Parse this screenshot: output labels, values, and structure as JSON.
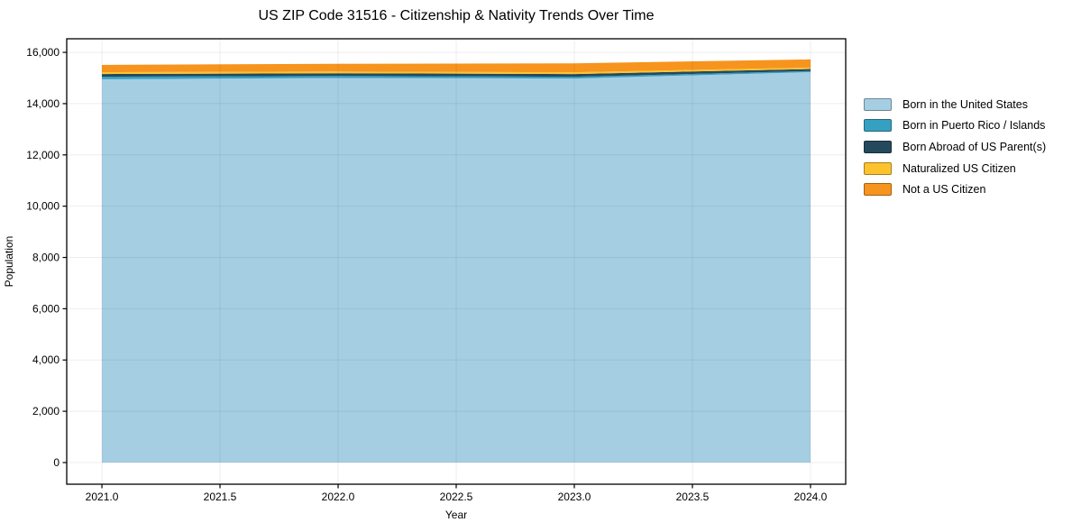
{
  "title": "US ZIP Code 31516 - Citizenship & Nativity Trends Over Time",
  "chart_data": {
    "type": "area",
    "stacked": true,
    "title": "US ZIP Code 31516 - Citizenship & Nativity Trends Over Time",
    "xlabel": "Year",
    "ylabel": "Population",
    "x": [
      2021,
      2022,
      2023,
      2024
    ],
    "series": [
      {
        "name": "Born in the United States",
        "color": "#a6cee3",
        "values": [
          14950,
          15000,
          14980,
          15230
        ]
      },
      {
        "name": "Born in Puerto Rico / Islands",
        "color": "#36a0c2",
        "values": [
          100,
          80,
          70,
          40
        ]
      },
      {
        "name": "Born Abroad of US Parent(s)",
        "color": "#25495c",
        "values": [
          105,
          105,
          105,
          80
        ]
      },
      {
        "name": "Naturalized US Citizen",
        "color": "#fcc32f",
        "values": [
          70,
          70,
          70,
          55
        ]
      },
      {
        "name": "Not a US Citizen",
        "color": "#f7941e",
        "values": [
          285,
          300,
          350,
          320
        ]
      }
    ],
    "xlim": [
      2020.851,
      2024.149
    ],
    "ylim": [
      -845,
      16530
    ],
    "x_ticks": [
      2021.0,
      2021.5,
      2022.0,
      2022.5,
      2023.0,
      2023.5,
      2024.0
    ],
    "x_tick_labels": [
      "2021.0",
      "2021.5",
      "2022.0",
      "2022.5",
      "2023.0",
      "2023.5",
      "2024.0"
    ],
    "y_ticks": [
      0,
      2000,
      4000,
      6000,
      8000,
      10000,
      12000,
      14000,
      16000
    ],
    "y_tick_labels": [
      "0",
      "2,000",
      "4,000",
      "6,000",
      "8,000",
      "10,000",
      "12,000",
      "14,000",
      "16,000"
    ],
    "grid": true,
    "legend_position": "right-outside"
  },
  "colors": {
    "background": "#ffffff",
    "axis": "#000000",
    "tick_text": "#000000",
    "grid_overlay": "rgba(0,0,0,0.07)"
  }
}
